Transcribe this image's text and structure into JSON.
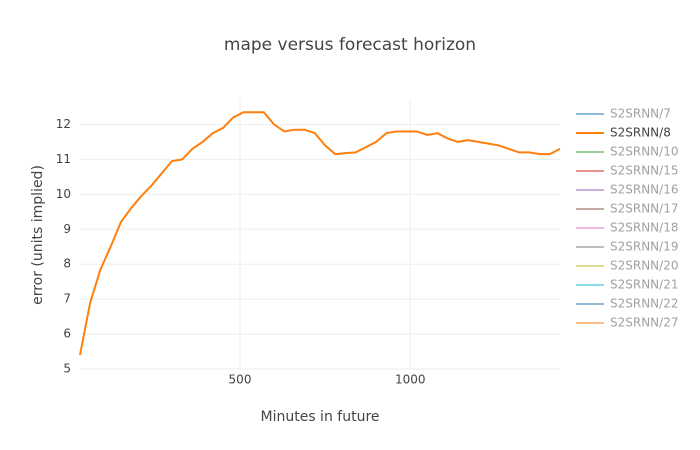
{
  "chart_data": {
    "type": "line",
    "title": "mape versus forecast horizon",
    "x_label": "Minutes in future",
    "y_label": "error (units implied)",
    "x": [
      30,
      60,
      90,
      120,
      150,
      180,
      210,
      240,
      270,
      300,
      330,
      360,
      390,
      420,
      450,
      480,
      510,
      540,
      570,
      600,
      630,
      660,
      690,
      720,
      750,
      780,
      810,
      840,
      870,
      900,
      930,
      960,
      990,
      1020,
      1050,
      1080,
      1110,
      1140,
      1170,
      1200,
      1230,
      1260,
      1290,
      1320,
      1350,
      1380,
      1410,
      1440
    ],
    "series": [
      {
        "name": "S2SRNN/7",
        "color": "#1f77b4",
        "visible": false
      },
      {
        "name": "S2SRNN/8",
        "color": "#ff7f0e",
        "visible": true,
        "values": [
          5.4,
          6.9,
          7.85,
          8.5,
          9.2,
          9.6,
          9.95,
          10.25,
          10.6,
          10.95,
          11.0,
          11.3,
          11.5,
          11.75,
          11.9,
          12.2,
          12.35,
          12.35,
          12.35,
          12.0,
          11.8,
          11.85,
          11.85,
          11.75,
          11.4,
          11.15,
          11.18,
          11.2,
          11.35,
          11.5,
          11.75,
          11.8,
          11.8,
          11.8,
          11.7,
          11.75,
          11.6,
          11.5,
          11.55,
          11.5,
          11.45,
          11.4,
          11.3,
          11.2,
          11.2,
          11.15,
          11.15,
          11.3
        ]
      },
      {
        "name": "S2SRNN/10",
        "color": "#2ca02c",
        "visible": false
      },
      {
        "name": "S2SRNN/15",
        "color": "#d62728",
        "visible": false
      },
      {
        "name": "S2SRNN/16",
        "color": "#9467bd",
        "visible": false
      },
      {
        "name": "S2SRNN/17",
        "color": "#8c564b",
        "visible": false
      },
      {
        "name": "S2SRNN/18",
        "color": "#e377c2",
        "visible": false
      },
      {
        "name": "S2SRNN/19",
        "color": "#7f7f7f",
        "visible": false
      },
      {
        "name": "S2SRNN/20",
        "color": "#bcbd22",
        "visible": false
      },
      {
        "name": "S2SRNN/21",
        "color": "#17becf",
        "visible": false
      },
      {
        "name": "S2SRNN/22",
        "color": "#1f77b4",
        "visible": false
      },
      {
        "name": "S2SRNN/27",
        "color": "#ff7f0e",
        "visible": false
      }
    ],
    "xlim": [
      30,
      1440
    ],
    "xticks": [
      500,
      1000
    ],
    "ylim": [
      5,
      12.7
    ],
    "yticks": [
      5,
      6,
      7,
      8,
      9,
      10,
      11,
      12
    ],
    "grid": true,
    "legend": "right"
  }
}
